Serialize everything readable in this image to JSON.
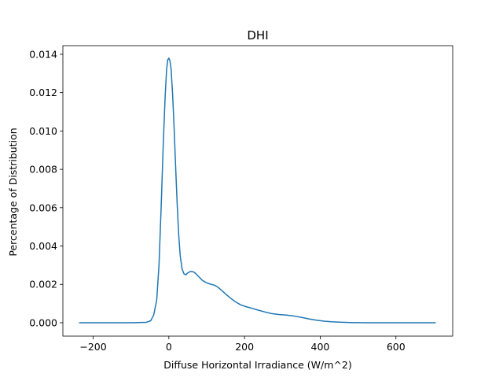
{
  "chart_data": {
    "type": "line",
    "title": "DHI",
    "xlabel": "Diffuse Horizontal Irradiance (W/m^2)",
    "ylabel": "Percentage of Distribution",
    "xlim": [
      -280,
      750
    ],
    "ylim": [
      -0.0007,
      0.01445
    ],
    "xticks": [
      -200,
      0,
      200,
      400,
      600
    ],
    "yticks": [
      0.0,
      0.002,
      0.004,
      0.006,
      0.008,
      0.01,
      0.012,
      0.014
    ],
    "xtick_labels": [
      "−200",
      "0",
      "200",
      "400",
      "600"
    ],
    "ytick_labels": [
      "0.000",
      "0.002",
      "0.004",
      "0.006",
      "0.008",
      "0.010",
      "0.012",
      "0.014"
    ],
    "grid": false,
    "series": [
      {
        "name": "DHI",
        "color": "#1f77b4",
        "x": [
          -236,
          -150,
          -100,
          -60,
          -48,
          -40,
          -32,
          -26,
          -20,
          -15,
          -10,
          -6,
          -3,
          0,
          3,
          6,
          10,
          14,
          18,
          22,
          26,
          30,
          35,
          40,
          45,
          50,
          58,
          65,
          72,
          80,
          88,
          96,
          104,
          112,
          120,
          130,
          140,
          150,
          160,
          175,
          190,
          205,
          220,
          235,
          250,
          270,
          290,
          310,
          330,
          350,
          370,
          390,
          410,
          430,
          450,
          480,
          520,
          600,
          704
        ],
        "y": [
          0.0,
          0.0,
          0.0,
          2e-05,
          0.0001,
          0.0004,
          0.0012,
          0.003,
          0.0062,
          0.0092,
          0.0117,
          0.0132,
          0.0137,
          0.0138,
          0.01365,
          0.0132,
          0.0119,
          0.0101,
          0.0081,
          0.0062,
          0.0046,
          0.0035,
          0.0028,
          0.00255,
          0.0025,
          0.0026,
          0.00268,
          0.00265,
          0.00255,
          0.00238,
          0.00222,
          0.00212,
          0.00205,
          0.002,
          0.00196,
          0.00185,
          0.00168,
          0.0015,
          0.00133,
          0.0011,
          0.00093,
          0.00083,
          0.00075,
          0.00066,
          0.00058,
          0.00048,
          0.00043,
          0.0004,
          0.00035,
          0.00028,
          0.0002,
          0.00013,
          8e-05,
          5e-05,
          3e-05,
          1e-05,
          0.0,
          0.0,
          0.0
        ]
      }
    ]
  }
}
